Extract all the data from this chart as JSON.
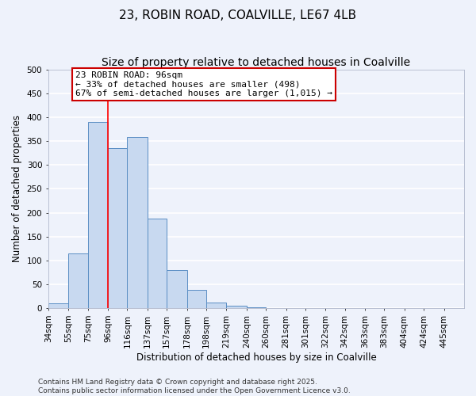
{
  "title": "23, ROBIN ROAD, COALVILLE, LE67 4LB",
  "subtitle": "Size of property relative to detached houses in Coalville",
  "xlabel": "Distribution of detached houses by size in Coalville",
  "ylabel": "Number of detached properties",
  "bin_labels": [
    "34sqm",
    "55sqm",
    "75sqm",
    "96sqm",
    "116sqm",
    "137sqm",
    "157sqm",
    "178sqm",
    "198sqm",
    "219sqm",
    "240sqm",
    "260sqm",
    "281sqm",
    "301sqm",
    "322sqm",
    "342sqm",
    "363sqm",
    "383sqm",
    "404sqm",
    "424sqm",
    "445sqm"
  ],
  "bin_edges": [
    34,
    55,
    75,
    96,
    116,
    137,
    157,
    178,
    198,
    219,
    240,
    260,
    281,
    301,
    322,
    342,
    363,
    383,
    404,
    424,
    445
  ],
  "bar_heights": [
    10,
    115,
    390,
    335,
    358,
    188,
    80,
    38,
    12,
    5,
    2,
    1,
    0,
    0,
    0,
    0,
    0,
    0,
    0,
    0
  ],
  "bar_color": "#c8d9f0",
  "bar_edge_color": "#5b8ec4",
  "red_line_x": 96,
  "annotation_line1": "23 ROBIN ROAD: 96sqm",
  "annotation_line2": "← 33% of detached houses are smaller (498)",
  "annotation_line3": "67% of semi-detached houses are larger (1,015) →",
  "annotation_box_color": "#ffffff",
  "annotation_box_edge_color": "#cc0000",
  "ylim": [
    0,
    500
  ],
  "yticks": [
    0,
    50,
    100,
    150,
    200,
    250,
    300,
    350,
    400,
    450,
    500
  ],
  "footer_line1": "Contains HM Land Registry data © Crown copyright and database right 2025.",
  "footer_line2": "Contains public sector information licensed under the Open Government Licence v3.0.",
  "bg_color": "#eef2fb",
  "grid_color": "#ffffff",
  "title_fontsize": 11,
  "subtitle_fontsize": 10,
  "axis_label_fontsize": 8.5,
  "tick_fontsize": 7.5,
  "annotation_fontsize": 8,
  "footer_fontsize": 6.5
}
